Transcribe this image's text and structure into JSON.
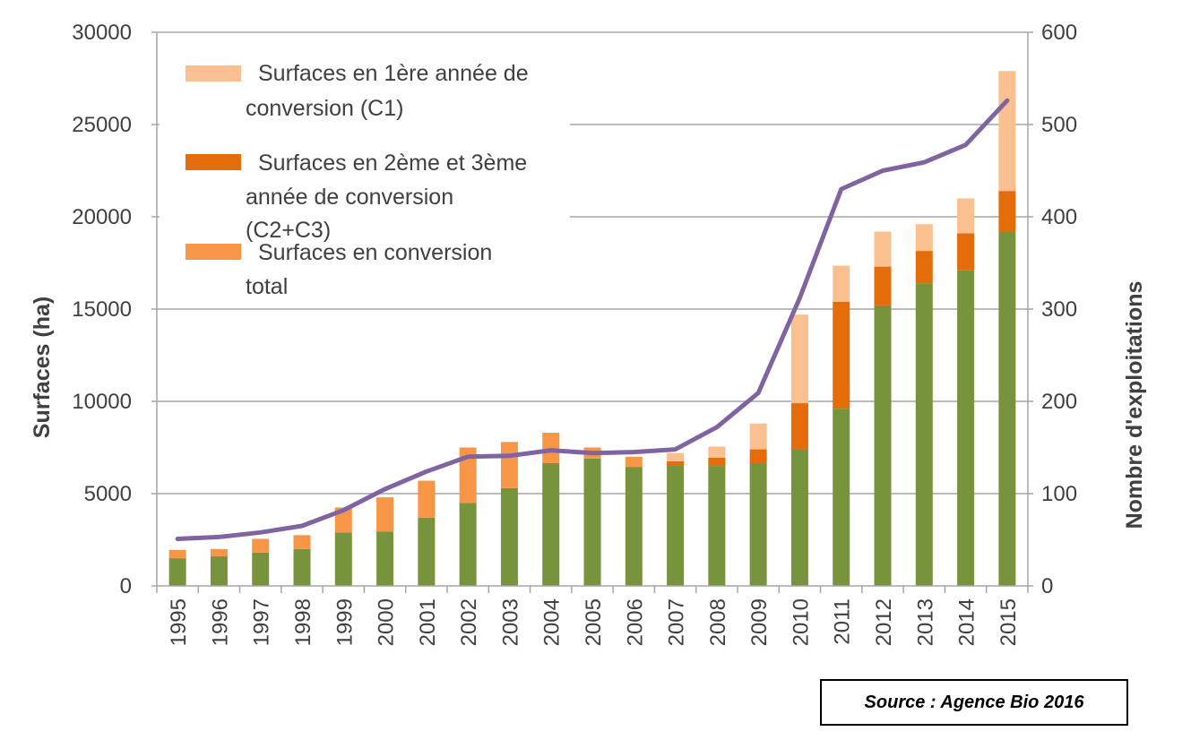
{
  "chart_data": {
    "type": "bar",
    "stacked": true,
    "categories": [
      "1995",
      "1996",
      "1997",
      "1998",
      "1999",
      "2000",
      "2001",
      "2002",
      "2003",
      "2004",
      "2005",
      "2006",
      "2007",
      "2008",
      "2009",
      "2010",
      "2011",
      "2012",
      "2013",
      "2014",
      "2015"
    ],
    "series": [
      {
        "name": "",
        "axis": "left",
        "color": "#77933c",
        "values": [
          1500,
          1600,
          1800,
          2000,
          2900,
          2950,
          3700,
          4500,
          5300,
          6650,
          6900,
          6450,
          6550,
          6500,
          6650,
          7400,
          9600,
          15200,
          16400,
          17100,
          19200
        ]
      },
      {
        "name": "Surfaces en conversion total",
        "axis": "left",
        "color": "#f79646",
        "values": [
          450,
          400,
          750,
          750,
          1350,
          1850,
          2000,
          3000,
          2500,
          1650,
          600,
          550,
          0,
          0,
          0,
          0,
          0,
          0,
          0,
          0,
          0
        ]
      },
      {
        "name": "Surfaces en 2ème et 3ème année de conversion (C2+C3)",
        "axis": "left",
        "color": "#e46c0a",
        "values": [
          0,
          0,
          0,
          0,
          0,
          0,
          0,
          0,
          0,
          0,
          0,
          0,
          200,
          450,
          750,
          2500,
          5800,
          2100,
          1750,
          2000,
          2200
        ]
      },
      {
        "name": "Surfaces en 1ère année de conversion (C1)",
        "axis": "left",
        "color": "#fac090",
        "values": [
          0,
          0,
          0,
          0,
          0,
          0,
          0,
          0,
          0,
          0,
          0,
          0,
          450,
          600,
          1400,
          4800,
          1950,
          1900,
          1450,
          1900,
          6500
        ]
      },
      {
        "name": "",
        "type": "line",
        "axis": "right",
        "color": "#8064a2",
        "values": [
          51,
          53,
          58,
          65,
          82,
          105,
          124,
          140,
          141,
          147,
          144,
          145,
          148,
          172,
          209,
          312,
          430,
          450,
          459,
          478,
          526
        ]
      }
    ],
    "legend_labels": [
      {
        "lines": [
          "Surfaces en 1ère année de",
          "conversion (C1)"
        ],
        "color": "#fac090"
      },
      {
        "lines": [
          "Surfaces en 2ème et 3ème",
          "année de conversion",
          "(C2+C3)"
        ],
        "color": "#e46c0a"
      },
      {
        "lines": [
          "Surfaces en conversion",
          "total"
        ],
        "color": "#f79646"
      }
    ],
    "title": "",
    "ylabel": "Surfaces (ha)",
    "y2label": "Nombre d'exploitations",
    "ylim": [
      0,
      30000
    ],
    "y2lim": [
      0,
      600
    ],
    "yticks": [
      "0",
      "5000",
      "10000",
      "15000",
      "20000",
      "25000",
      "30000"
    ],
    "y2ticks": [
      "0",
      "100",
      "200",
      "300",
      "400",
      "500",
      "600"
    ],
    "grid": true,
    "legend_position": "top-left"
  },
  "source": "Source : Agence Bio 2016"
}
